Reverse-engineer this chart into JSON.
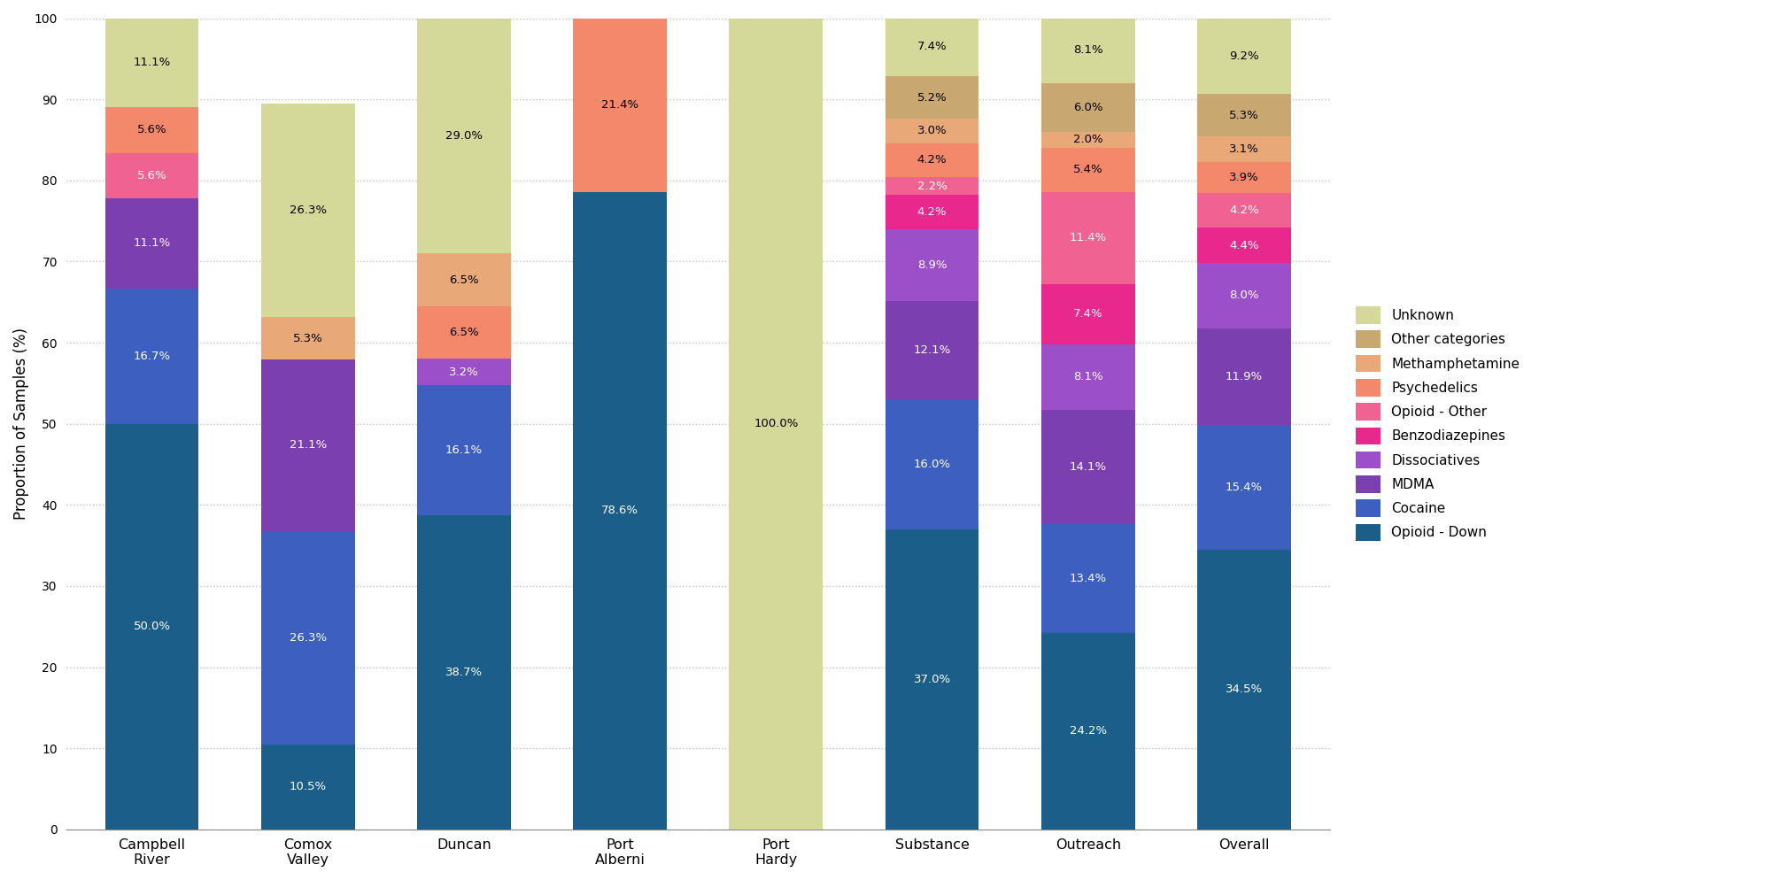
{
  "categories": [
    "Campbell\nRiver",
    "Comox\nValley",
    "Duncan",
    "Port\nAlberni",
    "Port\nHardy",
    "Substance",
    "Outreach",
    "Overall"
  ],
  "drug_classes": [
    "Opioid - Down",
    "Cocaine",
    "MDMA",
    "Dissociatives",
    "Benzodiazepines",
    "Opioid - Other",
    "Psychedelics",
    "Methamphetamine",
    "Other categories",
    "Unknown"
  ],
  "colors": [
    "#1b5e8a",
    "#3d5fc0",
    "#7b3fb0",
    "#9b4fc8",
    "#e8288c",
    "#f06292",
    "#f4886a",
    "#e8a878",
    "#c8a870",
    "#d4d898"
  ],
  "data": {
    "Campbell\nRiver": [
      50.0,
      16.7,
      11.1,
      0.0,
      0.0,
      5.6,
      5.6,
      0.0,
      0.0,
      11.1
    ],
    "Comox\nValley": [
      10.5,
      26.3,
      21.1,
      0.0,
      0.0,
      0.0,
      0.0,
      5.3,
      0.0,
      26.3
    ],
    "Duncan": [
      38.7,
      16.1,
      0.0,
      3.2,
      0.0,
      0.0,
      6.5,
      6.5,
      0.0,
      29.0
    ],
    "Port\nAlberni": [
      78.6,
      0.0,
      0.0,
      0.0,
      0.0,
      0.0,
      21.4,
      0.0,
      0.0,
      0.0
    ],
    "Port\nHardy": [
      0.0,
      0.0,
      0.0,
      0.0,
      0.0,
      0.0,
      0.0,
      0.0,
      0.0,
      100.0
    ],
    "Substance": [
      37.0,
      16.0,
      12.1,
      8.9,
      4.2,
      2.2,
      4.2,
      3.0,
      5.2,
      7.4
    ],
    "Outreach": [
      24.2,
      13.4,
      14.1,
      8.1,
      7.4,
      11.4,
      5.4,
      2.0,
      6.0,
      8.1
    ],
    "Overall": [
      34.5,
      15.4,
      11.9,
      8.0,
      4.4,
      4.2,
      3.9,
      3.1,
      5.3,
      9.2
    ]
  },
  "text_colors": {
    "Opioid - Down": "white",
    "Cocaine": "white",
    "MDMA": "white",
    "Dissociatives": "white",
    "Benzodiazepines": "white",
    "Opioid - Other": "white",
    "Psychedelics": "black",
    "Methamphetamine": "black",
    "Other categories": "black",
    "Unknown": "black"
  },
  "ylabel": "Proportion of Samples (%)",
  "ylim": [
    0,
    100
  ],
  "background_color": "#ffffff",
  "grid_color": "#c0c0c0",
  "threshold": 1.0,
  "bar_width": 0.6,
  "figsize": [
    20.0,
    9.94
  ],
  "dpi": 100
}
